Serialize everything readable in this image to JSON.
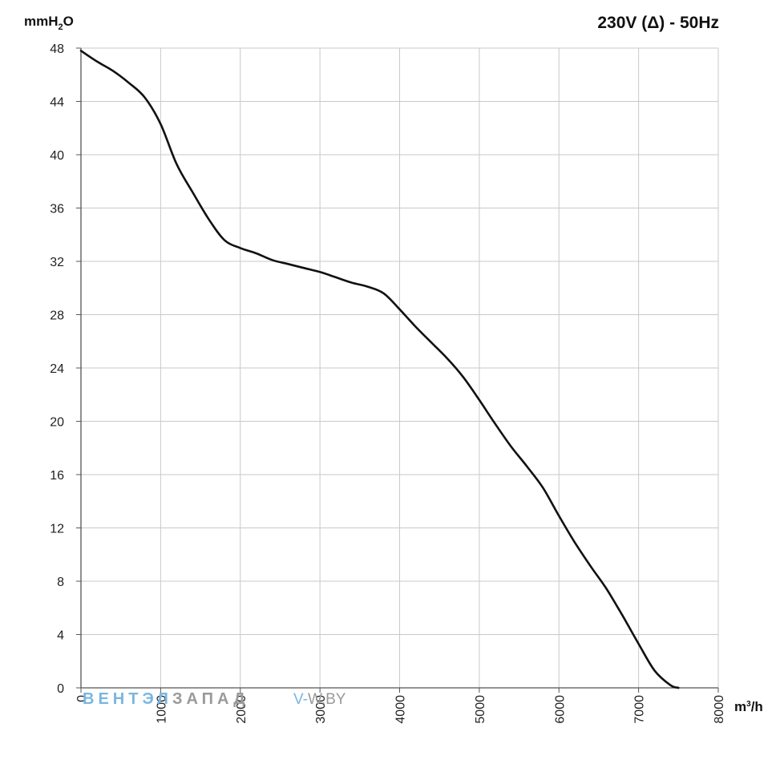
{
  "chart_data": {
    "type": "line",
    "title": "230V (Δ) - 50Hz",
    "ylabel_parts": [
      "mmH",
      "2",
      "O"
    ],
    "xlabel_parts": [
      "m",
      "3",
      "/h"
    ],
    "xlim": [
      0,
      8000
    ],
    "ylim": [
      0,
      48
    ],
    "grid": true,
    "x_ticks": [
      "0",
      "1000",
      "2000",
      "3000",
      "4000",
      "5000",
      "6000",
      "7000",
      "8000"
    ],
    "y_ticks": [
      "0",
      "4",
      "8",
      "12",
      "16",
      "20",
      "24",
      "28",
      "32",
      "36",
      "40",
      "44",
      "48"
    ],
    "series": [
      {
        "x": [
          0,
          200,
          400,
          600,
          800,
          1000,
          1200,
          1400,
          1600,
          1800,
          2000,
          2200,
          2400,
          2600,
          2800,
          3000,
          3200,
          3400,
          3600,
          3800,
          4000,
          4200,
          4400,
          4600,
          4800,
          5000,
          5200,
          5400,
          5600,
          5800,
          6000,
          6200,
          6400,
          6600,
          6800,
          7000,
          7200,
          7400,
          7500
        ],
        "y": [
          47.8,
          47.0,
          46.3,
          45.4,
          44.3,
          42.3,
          39.3,
          37.2,
          35.2,
          33.6,
          33.0,
          32.6,
          32.1,
          31.8,
          31.5,
          31.2,
          30.8,
          30.4,
          30.1,
          29.6,
          28.4,
          27.1,
          25.9,
          24.7,
          23.3,
          21.6,
          19.8,
          18.1,
          16.6,
          15.0,
          12.9,
          10.9,
          9.1,
          7.4,
          5.4,
          3.3,
          1.3,
          0.2,
          0.0
        ],
        "color": "#111111"
      }
    ]
  },
  "watermark": {
    "part1": "ВЕНТЭЛ",
    "part1_color": "#7ab6e0",
    "part2": "ЗАПАД",
    "part2_color": "#9a9a9a",
    "site_prefix": "V-",
    "site_prefix_color": "#7ab6e0",
    "site_suffix": "W.BY",
    "site_suffix_color": "#9a9a9a"
  }
}
